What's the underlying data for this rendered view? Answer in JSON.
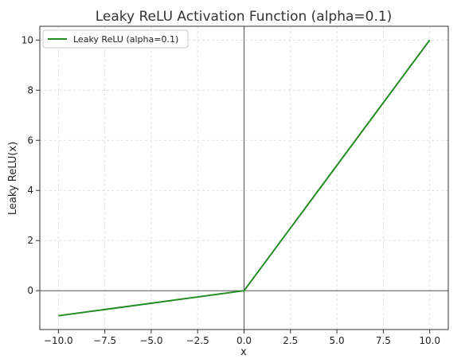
{
  "chart_data": {
    "type": "line",
    "title": "Leaky ReLU Activation Function (alpha=0.1)",
    "xlabel": "x",
    "ylabel": "Leaky ReLU(x)",
    "xlim": [
      -11,
      11
    ],
    "ylim": [
      -1.55,
      10.55
    ],
    "xticks": [
      -10,
      -7.5,
      -5,
      -2.5,
      0,
      2.5,
      5,
      7.5,
      10
    ],
    "xtick_labels": [
      "−10.0",
      "−7.5",
      "−5.0",
      "−2.5",
      "0.0",
      "2.5",
      "5.0",
      "7.5",
      "10.0"
    ],
    "yticks": [
      0,
      2,
      4,
      6,
      8,
      10
    ],
    "ytick_labels": [
      "0",
      "2",
      "4",
      "6",
      "8",
      "10"
    ],
    "grid": true,
    "legend_position": "top-left",
    "series": [
      {
        "name": "Leaky ReLU (alpha=0.1)",
        "color": "#228b22",
        "x": [
          -10,
          0,
          10
        ],
        "y": [
          -1,
          0,
          10
        ]
      }
    ],
    "reference_lines": {
      "x": 0,
      "y": 0,
      "color": "#555555"
    }
  }
}
